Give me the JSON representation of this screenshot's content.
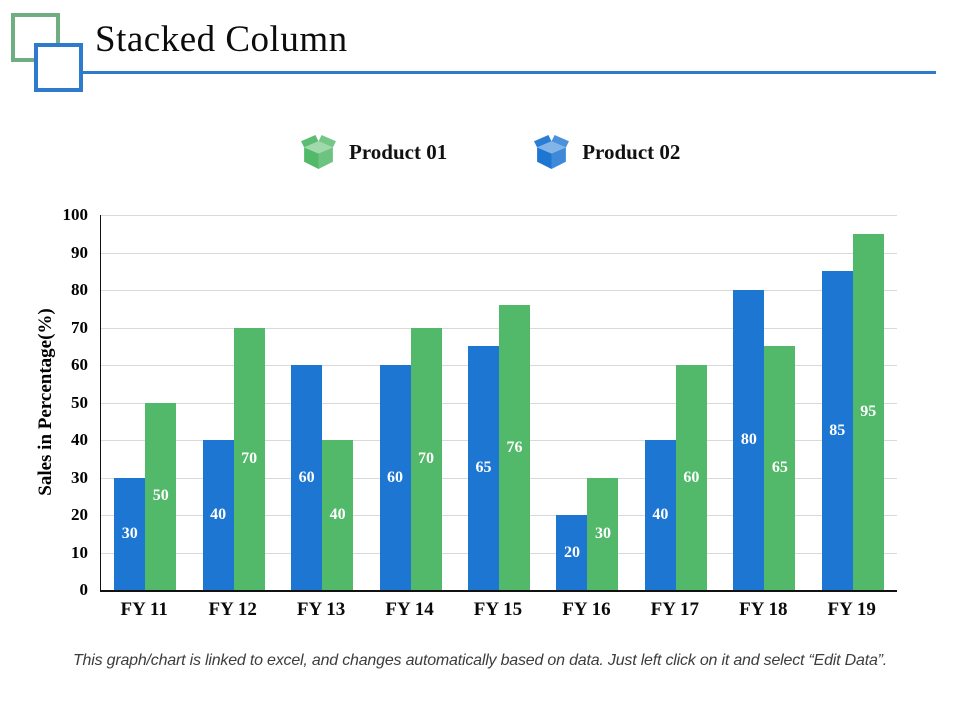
{
  "slide": {
    "title": "Stacked Column",
    "footnote": "This graph/chart is linked to excel, and changes automatically based on data. Just left click on it and select “Edit Data”."
  },
  "legend": {
    "items": [
      {
        "label": "Product 01",
        "icon": "open-box-icon",
        "icon_color": "#53B96A"
      },
      {
        "label": "Product 02",
        "icon": "open-box-icon",
        "icon_color": "#1C76D2"
      }
    ]
  },
  "colors": {
    "series1": "#1C76D2",
    "series2": "#53B96A",
    "accent_rule": "#2E7ACD",
    "decor_green": "#6FAE80",
    "gridline": "#D9D9D9",
    "axis": "#111111",
    "value_label": "#FFFFFF"
  },
  "chart_data": {
    "type": "bar",
    "title": "",
    "categories": [
      "FY 11",
      "FY 12",
      "FY 13",
      "FY 14",
      "FY 15",
      "FY 16",
      "FY 17",
      "FY 18",
      "FY 19"
    ],
    "series": [
      {
        "name": "Product 01",
        "color": "#1C76D2",
        "values": [
          30,
          40,
          60,
          60,
          65,
          20,
          40,
          80,
          85
        ]
      },
      {
        "name": "Product 02",
        "color": "#53B96A",
        "values": [
          50,
          70,
          40,
          70,
          76,
          30,
          60,
          65,
          95
        ]
      }
    ],
    "xlabel": "",
    "ylabel": "Sales in Percentage(%)",
    "ylim": [
      0,
      100
    ],
    "yticks": [
      0,
      10,
      20,
      30,
      40,
      50,
      60,
      70,
      80,
      90,
      100
    ],
    "grid": true,
    "legend_position": "top",
    "value_labels": "inside-center"
  }
}
